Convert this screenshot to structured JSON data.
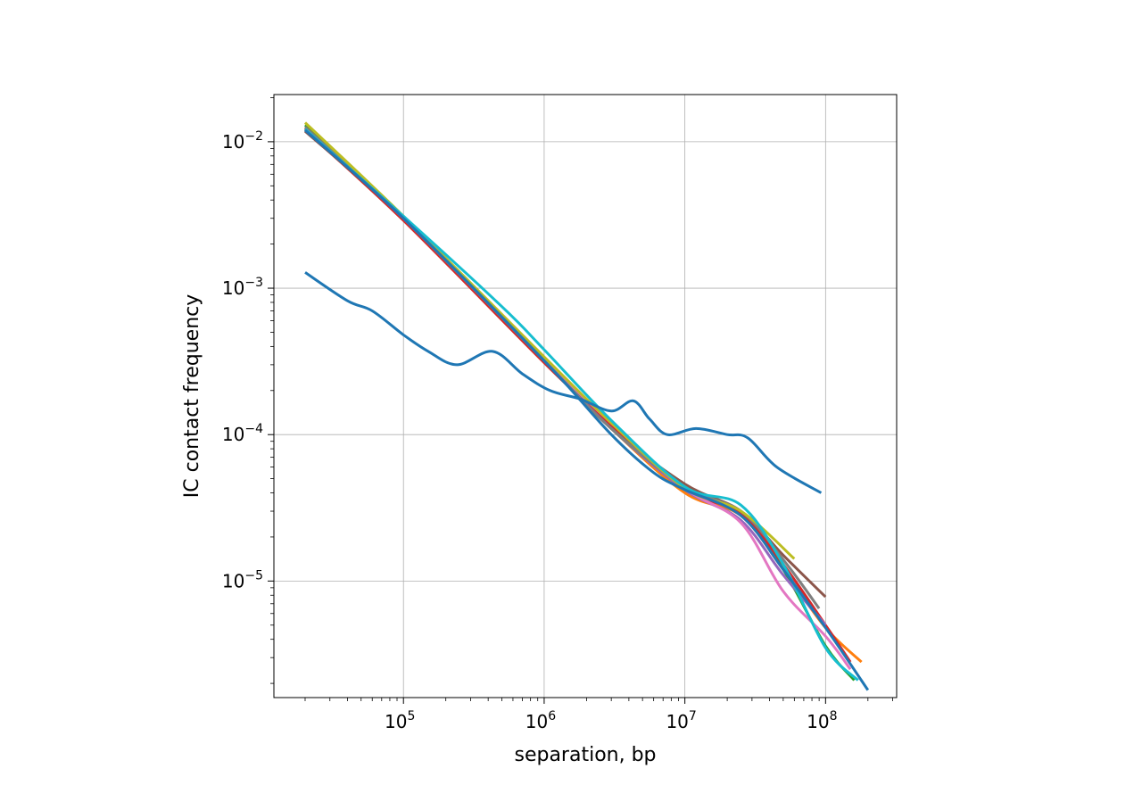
{
  "chart_data": {
    "type": "line",
    "title": "",
    "xlabel": "separation, bp",
    "ylabel": "IC contact frequency",
    "xscale": "log",
    "yscale": "log",
    "xlim": [
      12000,
      320000000
    ],
    "ylim": [
      1.6e-06,
      0.021
    ],
    "grid": true,
    "legend": "none",
    "x_ticks": [
      {
        "value": 100000,
        "base": "10",
        "exp": "5"
      },
      {
        "value": 1000000,
        "base": "10",
        "exp": "6"
      },
      {
        "value": 10000000,
        "base": "10",
        "exp": "7"
      },
      {
        "value": 100000000,
        "base": "10",
        "exp": "8"
      }
    ],
    "y_ticks": [
      {
        "value": 0.01,
        "base": "10",
        "exp": "−2"
      },
      {
        "value": 0.001,
        "base": "10",
        "exp": "−3"
      },
      {
        "value": 0.0001,
        "base": "10",
        "exp": "−4"
      },
      {
        "value": 1e-05,
        "base": "10",
        "exp": "−5"
      }
    ],
    "series": [
      {
        "color": "#ff7f0e",
        "points": [
          [
            20000,
            0.0125
          ],
          [
            100000,
            0.003
          ],
          [
            1000000,
            0.00032
          ],
          [
            3000000,
            0.00011
          ],
          [
            10000000,
            4e-05
          ],
          [
            25000000,
            2.8e-05
          ],
          [
            50000000,
            1.2e-05
          ],
          [
            100000000,
            4.8e-06
          ],
          [
            180000000,
            2.8e-06
          ]
        ]
      },
      {
        "color": "#2ca02c",
        "points": [
          [
            20000,
            0.013
          ],
          [
            100000,
            0.0031
          ],
          [
            1000000,
            0.00033
          ],
          [
            3000000,
            0.00011
          ],
          [
            10000000,
            4.3e-05
          ],
          [
            25000000,
            2.9e-05
          ],
          [
            50000000,
            1.2e-05
          ],
          [
            100000000,
            3.6e-06
          ],
          [
            160000000,
            2.1e-06
          ]
        ]
      },
      {
        "color": "#d62728",
        "points": [
          [
            20000,
            0.012
          ],
          [
            100000,
            0.0029
          ],
          [
            1000000,
            0.00031
          ],
          [
            3000000,
            0.000115
          ],
          [
            10000000,
            4.2e-05
          ],
          [
            25000000,
            2.9e-05
          ],
          [
            50000000,
            1.3e-05
          ],
          [
            100000000,
            5e-06
          ],
          [
            150000000,
            2.8e-06
          ]
        ]
      },
      {
        "color": "#9467bd",
        "points": [
          [
            20000,
            0.0122
          ],
          [
            100000,
            0.003
          ],
          [
            1000000,
            0.00032
          ],
          [
            3000000,
            0.00011
          ],
          [
            10000000,
            4.2e-05
          ],
          [
            25000000,
            2.6e-05
          ],
          [
            50000000,
            1.1e-05
          ],
          [
            100000000,
            5e-06
          ]
        ]
      },
      {
        "color": "#8c564b",
        "points": [
          [
            20000,
            0.0118
          ],
          [
            100000,
            0.003
          ],
          [
            1000000,
            0.00032
          ],
          [
            3000000,
            0.00011
          ],
          [
            10000000,
            4.6e-05
          ],
          [
            25000000,
            3e-05
          ],
          [
            50000000,
            1.5e-05
          ],
          [
            100000000,
            7.8e-06
          ]
        ]
      },
      {
        "color": "#e377c2",
        "points": [
          [
            20000,
            0.0123
          ],
          [
            100000,
            0.003
          ],
          [
            1000000,
            0.00033
          ],
          [
            3000000,
            0.00012
          ],
          [
            10000000,
            4.3e-05
          ],
          [
            25000000,
            2.5e-05
          ],
          [
            50000000,
            8.5e-06
          ],
          [
            100000000,
            4.2e-06
          ],
          [
            150000000,
            2.5e-06
          ]
        ]
      },
      {
        "color": "#7f7f7f",
        "points": [
          [
            20000,
            0.0126
          ],
          [
            100000,
            0.003
          ],
          [
            1000000,
            0.00032
          ],
          [
            3000000,
            0.00011
          ],
          [
            10000000,
            4.4e-05
          ],
          [
            25000000,
            3e-05
          ],
          [
            50000000,
            1.4e-05
          ],
          [
            90000000,
            6.5e-06
          ]
        ]
      },
      {
        "color": "#bcbd22",
        "points": [
          [
            20000,
            0.0135
          ],
          [
            100000,
            0.0031
          ],
          [
            1000000,
            0.00034
          ],
          [
            3000000,
            0.00012
          ],
          [
            10000000,
            4.3e-05
          ],
          [
            25000000,
            3e-05
          ],
          [
            60000000,
            1.42e-05
          ]
        ]
      },
      {
        "color": "#17becf",
        "points": [
          [
            20000,
            0.0122
          ],
          [
            100000,
            0.0031
          ],
          [
            500000,
            0.00075
          ],
          [
            1000000,
            0.00038
          ],
          [
            3000000,
            0.000125
          ],
          [
            10000000,
            4.4e-05
          ],
          [
            25000000,
            3.3e-05
          ],
          [
            50000000,
            1.3e-05
          ],
          [
            100000000,
            3.5e-06
          ],
          [
            170000000,
            2.1e-06
          ]
        ]
      },
      {
        "color": "#1f77b4",
        "points": [
          [
            20000,
            0.00128
          ],
          [
            40000,
            0.00082
          ],
          [
            60000,
            0.0007
          ],
          [
            100000,
            0.00048
          ],
          [
            150000,
            0.00037
          ],
          [
            240000,
            0.0003
          ],
          [
            430000,
            0.00037
          ],
          [
            700000,
            0.00026
          ],
          [
            1100000,
            0.0002
          ],
          [
            1800000,
            0.000175
          ],
          [
            3000000,
            0.000145
          ],
          [
            4300000,
            0.00017
          ],
          [
            5600000,
            0.000128
          ],
          [
            7500000,
            0.0001
          ],
          [
            12000000,
            0.00011
          ],
          [
            20000000,
            0.0001
          ],
          [
            28000000,
            9.5e-05
          ],
          [
            45000000,
            6e-05
          ],
          [
            93000000,
            4e-05
          ]
        ]
      },
      {
        "color": "#1f77b4",
        "points": [
          [
            20000,
            0.012
          ],
          [
            100000,
            0.003
          ],
          [
            1000000,
            0.00032
          ],
          [
            3000000,
            0.0001
          ],
          [
            6000000,
            5.5e-05
          ],
          [
            10000000,
            4.2e-05
          ],
          [
            25000000,
            2.8e-05
          ],
          [
            50000000,
            1.2e-05
          ],
          [
            100000000,
            4.8e-06
          ],
          [
            200000000,
            1.8e-06
          ]
        ]
      }
    ]
  }
}
